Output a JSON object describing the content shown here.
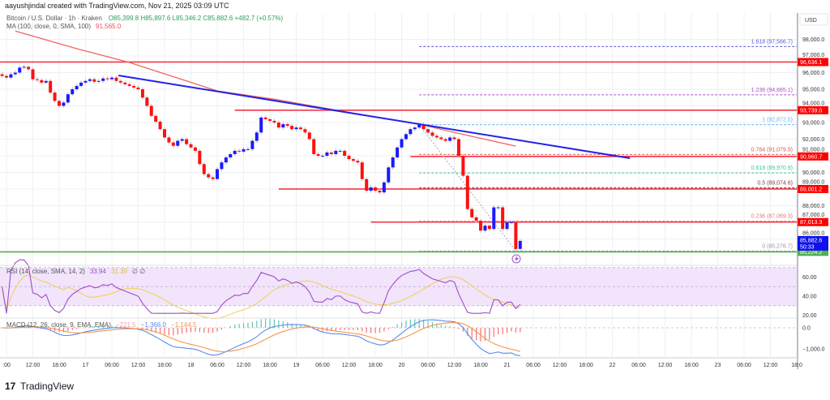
{
  "header": {
    "attribution": "aayushjindal created with TradingView.com, Nov 21, 2025 03:09 UTC",
    "symbol": "Bitcoin / U.S. Dollar · 1h · Kraken",
    "ohlc": "O85,399.8  H85,897.6  L85,346.2  C85,882.6  +482.7 (+0.57%)",
    "ma_label": "MA (100, close, 0, SMA, 100)",
    "ma_value": "91,565.0"
  },
  "footer": {
    "logo_text": "TradingView",
    "logo_mark": "17"
  },
  "colors": {
    "up": "#1a1aff",
    "down": "#ff1010",
    "ma": "#f26464",
    "trendline": "#2323e8",
    "level": "#f23645",
    "support": "#4caf50",
    "rsi": "#a04cc8",
    "rsi_sma": "#f0d050",
    "macd": "#5a8cf0",
    "signal": "#f5954a",
    "hist_pos": "#5fc8b0",
    "hist_neg": "#f57070"
  },
  "chart_data": [
    {
      "type": "candlestick",
      "currency": "USD",
      "start": "2025-11-16T05:00",
      "interval_hours": 1,
      "closes": [
        95800,
        95700,
        95900,
        96000,
        96300,
        96350,
        96200,
        95600,
        95550,
        95400,
        95500,
        94800,
        94300,
        94000,
        94200,
        94700,
        95000,
        95200,
        95400,
        95500,
        95600,
        95450,
        95500,
        95650,
        95600,
        95700,
        95500,
        95400,
        95300,
        95200,
        95100,
        95000,
        94500,
        94000,
        93400,
        93050,
        92600,
        92100,
        91800,
        91600,
        91900,
        92000,
        91700,
        91500,
        91300,
        90500,
        89900,
        89700,
        89600,
        90200,
        90600,
        90900,
        91100,
        91300,
        91250,
        91400,
        91400,
        91900,
        92400,
        93300,
        93200,
        93100,
        93000,
        92700,
        92900,
        92800,
        92600,
        92700,
        92600,
        92400,
        92000,
        91100,
        91000,
        91000,
        91200,
        91100,
        91300,
        91300,
        91000,
        90800,
        90700,
        90600,
        89600,
        88900,
        89100,
        88900,
        88800,
        89400,
        90300,
        90900,
        91500,
        92000,
        92300,
        92600,
        92700,
        92900,
        92600,
        92400,
        92200,
        92100,
        92000,
        91900,
        92100,
        92000,
        91000,
        89800,
        87800,
        87300,
        87100,
        86500,
        86800,
        86600,
        87900,
        87900,
        86600,
        87000,
        87000,
        85400,
        85882.6
      ],
      "y_ticks": [
        "86,000.0",
        "87,000.0",
        "88,000.0",
        "89,000.0",
        "90,000.0",
        "91,000.0",
        "92,000.0",
        "93,000.0",
        "94,000.0",
        "95,000.0",
        "96,000.0",
        "97,000.0",
        "98,000.0"
      ],
      "y_tick_values": [
        86000,
        87000,
        88000,
        89000,
        90000,
        91000,
        92000,
        93000,
        94000,
        95000,
        96000,
        97000,
        98000
      ],
      "x_ticks": [
        ":00",
        "12:00",
        "18:00",
        "17",
        "06:00",
        "12:00",
        "18:00",
        "18",
        "06:00",
        "12:00",
        "18:00",
        "19",
        "06:00",
        "12:00",
        "18:00",
        "20",
        "06:00",
        "12:00",
        "18:00",
        "21",
        "06:00",
        "12:00",
        "18:00",
        "22",
        "06:00",
        "12:00",
        "18:00",
        "23",
        "06:00",
        "12:00",
        "18:0"
      ],
      "x_tick_start": "2025-11-16T06:00",
      "x_tick_step_hours": 6,
      "moving_average": [
        [
          "2025-11-16T08:00",
          98500
        ],
        [
          "2025-11-16T22:00",
          97440
        ],
        [
          "2025-11-17T10:00",
          96610
        ],
        [
          "2025-11-18T06:00",
          94900
        ],
        [
          "2025-11-18T19:00",
          94400
        ],
        [
          "2025-11-19T17:00",
          93380
        ],
        [
          "2025-11-20T04:00",
          92900
        ],
        [
          "2025-11-20T12:00",
          92400
        ],
        [
          "2025-11-21T02:00",
          91580
        ]
      ],
      "trendline": [
        [
          "2025-11-17T07:30",
          95830
        ],
        [
          "2025-11-22T04:00",
          90854
        ]
      ],
      "levels": [
        {
          "label": "96,636.1",
          "value": 96636.1,
          "from": "2025-11-16T00:00"
        },
        {
          "label": "93,739.0",
          "value": 93739.0,
          "from": "2025-11-18T10:00"
        },
        {
          "label": "90,960.7",
          "value": 90960.7,
          "from": "2025-11-20T02:00"
        },
        {
          "label": "89,001.2",
          "value": 89001.2,
          "from": "2025-11-18T20:00"
        },
        {
          "label": "87,013.3",
          "value": 87013.3,
          "from": "2025-11-19T17:00"
        }
      ],
      "support": {
        "label": "85,224.2",
        "value": 85224.2
      },
      "last_price": {
        "label": "85,882.6",
        "countdown": "50:33",
        "value": 85882.6
      },
      "fib_anchor": [
        [
          "2025-11-20T04:00",
          92872.5
        ],
        [
          "2025-11-21T02:00",
          85276.7
        ]
      ],
      "fibonacci": [
        {
          "label": "1.618 (97,566.7)",
          "value": 97566.7,
          "color": "#5b5bd6"
        },
        {
          "label": "1.236 (94,665.1)",
          "value": 94665.1,
          "color": "#b050d0"
        },
        {
          "label": "1 (92,872.5)",
          "value": 92872.5,
          "color": "#64b5f6"
        },
        {
          "label": "0.764 (91,079.9)",
          "value": 91079.9,
          "color": "#e05555"
        },
        {
          "label": "0.618 (89,970.9)",
          "value": 89970.9,
          "color": "#40c898"
        },
        {
          "label": "0.5 (89,074.6)",
          "value": 89074.6,
          "color": "#7a3d4a"
        },
        {
          "label": "0.236 (87,069.3)",
          "value": 87069.3,
          "color": "#e57373"
        },
        {
          "label": "0 (85,276.7)",
          "value": 85276.7,
          "color": "#999999"
        }
      ]
    },
    {
      "type": "line",
      "label": "RSI (14, close, SMA, 14, 2)",
      "rsi_value": "33.94",
      "sma_value": "31.39",
      "extra": "∅  ∅",
      "y_ticks": [
        "60.00",
        "40.00",
        "20.00"
      ],
      "y_tick_values": [
        60,
        40,
        20
      ],
      "band": [
        30,
        70
      ]
    },
    {
      "type": "line",
      "label": "MACD (12, 26, close, 9, EMA, EMA)",
      "hist_value": "−221.5",
      "macd_value": "−1,366.0",
      "signal_value": "−1,144.5",
      "y_ticks": [
        "0.0",
        "−1,000.0"
      ],
      "y_tick_values": [
        0,
        -1000
      ]
    }
  ]
}
